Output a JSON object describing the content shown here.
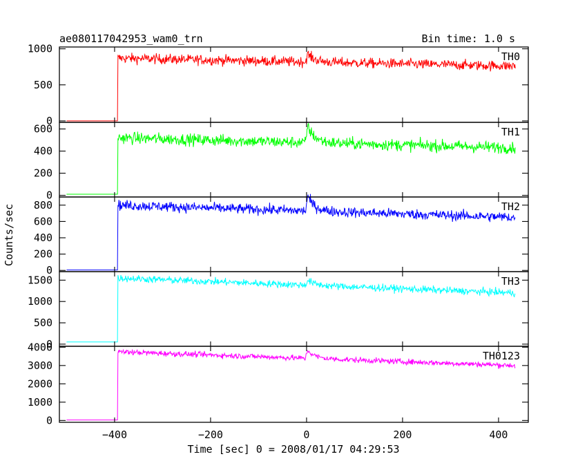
{
  "header": {
    "title": "ae080117042953_wam0_trn",
    "bin_time": "Bin time: 1.0 s"
  },
  "chart_data": {
    "type": "line",
    "xlabel": "Time [sec] 0 = 2008/01/17 04:29:53",
    "ylabel": "Counts/sec",
    "xlim": [
      -515,
      462
    ],
    "x_ticks": [
      -400,
      -200,
      0,
      200,
      400
    ],
    "x_tick_labels": [
      "−400",
      "−200",
      "0",
      "200",
      "400"
    ],
    "panels": [
      {
        "name": "TH0",
        "color": "#ff0000",
        "ylim": [
          -20,
          1025
        ],
        "y_ticks": [
          0,
          500,
          1000
        ],
        "y_tick_labels": [
          "0",
          "500",
          "1000"
        ],
        "series_profile": {
          "pre_level": 0,
          "onset": -393,
          "start_level": 870,
          "end_level": 760,
          "end_time": 435,
          "noise": 50,
          "burst": {
            "peak_time": 2,
            "amplitude": 110,
            "decay": 15
          }
        }
      },
      {
        "name": "TH1",
        "color": "#00ff00",
        "ylim": [
          -15,
          660
        ],
        "y_ticks": [
          0,
          200,
          400,
          600
        ],
        "y_tick_labels": [
          "0",
          "200",
          "400",
          "600"
        ],
        "series_profile": {
          "pre_level": 10,
          "onset": -393,
          "start_level": 520,
          "end_level": 430,
          "end_time": 435,
          "noise": 38,
          "burst": {
            "peak_time": 2,
            "amplitude": 150,
            "decay": 15
          }
        }
      },
      {
        "name": "TH2",
        "color": "#0000ff",
        "ylim": [
          -15,
          900
        ],
        "y_ticks": [
          0,
          200,
          400,
          600,
          800
        ],
        "y_tick_labels": [
          "0",
          "200",
          "400",
          "600",
          "800"
        ],
        "series_profile": {
          "pre_level": 5,
          "onset": -393,
          "start_level": 800,
          "end_level": 650,
          "end_time": 435,
          "noise": 45,
          "burst": {
            "peak_time": 2,
            "amplitude": 180,
            "decay": 15
          }
        }
      },
      {
        "name": "TH3",
        "color": "#00ffff",
        "ylim": [
          -50,
          1700
        ],
        "y_ticks": [
          0,
          500,
          1000,
          1500
        ],
        "y_tick_labels": [
          "0",
          "500",
          "1000",
          "1500"
        ],
        "series_profile": {
          "pre_level": 50,
          "onset": -393,
          "start_level": 1550,
          "end_level": 1200,
          "end_time": 435,
          "noise": 60,
          "burst": {
            "peak_time": 2,
            "amplitude": 120,
            "decay": 15
          }
        }
      },
      {
        "name": "TH0123",
        "color": "#ff00ff",
        "ylim": [
          -100,
          4050
        ],
        "y_ticks": [
          0,
          1000,
          2000,
          3000,
          4000
        ],
        "y_tick_labels": [
          "0",
          "1000",
          "2000",
          "3000",
          "4000"
        ],
        "series_profile": {
          "pre_level": 30,
          "onset": -393,
          "start_level": 3750,
          "end_level": 3000,
          "end_time": 435,
          "noise": 110,
          "burst": {
            "peak_time": 2,
            "amplitude": 450,
            "decay": 15
          }
        }
      }
    ]
  }
}
